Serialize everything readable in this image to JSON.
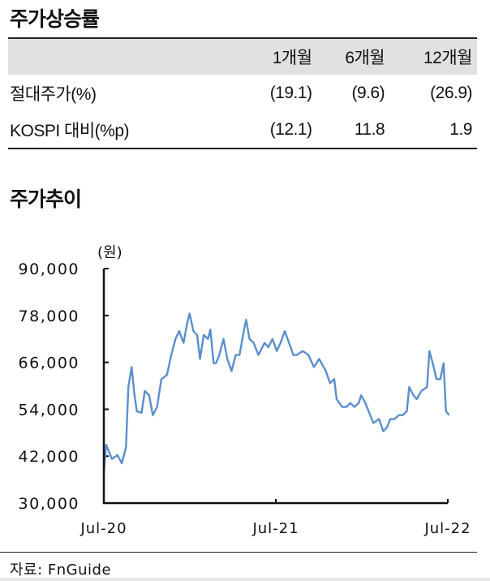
{
  "section1_title": "주가상승률",
  "table": {
    "headers": [
      "",
      "1개월",
      "6개월",
      "12개월"
    ],
    "rows": [
      {
        "label": "절대주가(%)",
        "values": [
          "(19.1)",
          "(9.6)",
          "(26.9)"
        ]
      },
      {
        "label": "KOSPI 대비(%p)",
        "values": [
          "(12.1)",
          "11.8",
          "1.9"
        ]
      }
    ]
  },
  "section2_title": "주가추이",
  "source": "자료: FnGuide",
  "chart_data": {
    "type": "line",
    "unit_label": "(원)",
    "ylim": [
      30000,
      90000
    ],
    "yticks": [
      "90,000",
      "78,000",
      "66,000",
      "54,000",
      "42,000",
      "30,000"
    ],
    "ytick_values": [
      90000,
      78000,
      66000,
      54000,
      42000,
      30000
    ],
    "xlim": [
      "2020-07-01",
      "2022-07-01"
    ],
    "xticks": [
      {
        "date": "2020-07-01",
        "label": "Jul-20"
      },
      {
        "date": "2021-07-01",
        "label": "Jul-21"
      },
      {
        "date": "2022-07-01",
        "label": "Jul-22"
      }
    ],
    "grid": false,
    "line_color": "#5b8fcc",
    "points": [
      [
        "2020-07-01",
        38000
      ],
      [
        "2020-07-06",
        44900
      ],
      [
        "2020-07-18",
        41300
      ],
      [
        "2020-07-30",
        42300
      ],
      [
        "2020-08-08",
        40200
      ],
      [
        "2020-08-17",
        44300
      ],
      [
        "2020-08-22",
        59700
      ],
      [
        "2020-08-29",
        64800
      ],
      [
        "2020-09-04",
        57600
      ],
      [
        "2020-09-09",
        53500
      ],
      [
        "2020-09-19",
        53100
      ],
      [
        "2020-09-26",
        58700
      ],
      [
        "2020-10-05",
        57600
      ],
      [
        "2020-10-13",
        52500
      ],
      [
        "2020-10-22",
        54600
      ],
      [
        "2020-10-31",
        61700
      ],
      [
        "2020-11-12",
        62800
      ],
      [
        "2020-11-21",
        67900
      ],
      [
        "2020-11-30",
        72000
      ],
      [
        "2020-12-08",
        74000
      ],
      [
        "2020-12-17",
        71000
      ],
      [
        "2020-12-25",
        76100
      ],
      [
        "2020-12-30",
        78500
      ],
      [
        "2021-01-07",
        74000
      ],
      [
        "2021-01-15",
        73000
      ],
      [
        "2021-01-21",
        66900
      ],
      [
        "2021-01-29",
        73000
      ],
      [
        "2021-02-07",
        72000
      ],
      [
        "2021-02-12",
        74400
      ],
      [
        "2021-02-19",
        65800
      ],
      [
        "2021-02-24",
        65800
      ],
      [
        "2021-03-03",
        67900
      ],
      [
        "2021-03-12",
        72000
      ],
      [
        "2021-03-20",
        66900
      ],
      [
        "2021-03-29",
        63800
      ],
      [
        "2021-04-07",
        67900
      ],
      [
        "2021-04-15",
        67900
      ],
      [
        "2021-04-24",
        74000
      ],
      [
        "2021-04-29",
        76900
      ],
      [
        "2021-05-06",
        72000
      ],
      [
        "2021-05-15",
        71000
      ],
      [
        "2021-05-25",
        67900
      ],
      [
        "2021-06-07",
        71000
      ],
      [
        "2021-06-15",
        69900
      ],
      [
        "2021-06-24",
        72000
      ],
      [
        "2021-07-03",
        68900
      ],
      [
        "2021-07-11",
        71000
      ],
      [
        "2021-07-20",
        74000
      ],
      [
        "2021-07-29",
        71000
      ],
      [
        "2021-08-07",
        67900
      ],
      [
        "2021-08-15",
        67900
      ],
      [
        "2021-08-27",
        68900
      ],
      [
        "2021-09-08",
        67900
      ],
      [
        "2021-09-20",
        64800
      ],
      [
        "2021-10-01",
        66900
      ],
      [
        "2021-10-15",
        63800
      ],
      [
        "2021-10-24",
        60700
      ],
      [
        "2021-11-02",
        61700
      ],
      [
        "2021-11-07",
        56600
      ],
      [
        "2021-11-19",
        54600
      ],
      [
        "2021-11-28",
        54600
      ],
      [
        "2021-12-06",
        55600
      ],
      [
        "2021-12-15",
        54600
      ],
      [
        "2021-12-24",
        55600
      ],
      [
        "2021-12-29",
        57600
      ],
      [
        "2022-01-07",
        55600
      ],
      [
        "2022-01-14",
        53500
      ],
      [
        "2022-01-24",
        50500
      ],
      [
        "2022-02-05",
        51500
      ],
      [
        "2022-02-14",
        48400
      ],
      [
        "2022-02-22",
        49400
      ],
      [
        "2022-03-01",
        51500
      ],
      [
        "2022-03-10",
        51500
      ],
      [
        "2022-03-19",
        52500
      ],
      [
        "2022-03-27",
        52500
      ],
      [
        "2022-04-05",
        53500
      ],
      [
        "2022-04-10",
        59700
      ],
      [
        "2022-04-19",
        57600
      ],
      [
        "2022-04-26",
        56600
      ],
      [
        "2022-05-06",
        58700
      ],
      [
        "2022-05-18",
        59700
      ],
      [
        "2022-05-23",
        68900
      ],
      [
        "2022-05-30",
        65800
      ],
      [
        "2022-06-07",
        61700
      ],
      [
        "2022-06-15",
        61700
      ],
      [
        "2022-06-22",
        65800
      ],
      [
        "2022-06-27",
        53500
      ],
      [
        "2022-07-04",
        52500
      ]
    ]
  }
}
